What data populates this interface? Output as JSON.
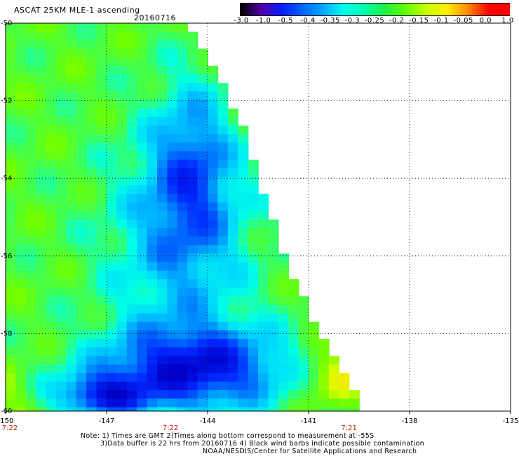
{
  "header": {
    "title": "ASCAT 25KM MLE-1 ascending",
    "date": "20160716"
  },
  "colorbar": {
    "labels": [
      "-3.0",
      "-1.0",
      "-0.5",
      "-0.4",
      "-0.35",
      "-0.3",
      "-0.25",
      "-0.2",
      "-0.15",
      "-0.1",
      "-0.05",
      "0.0",
      "1.0"
    ],
    "colors": [
      "#000000",
      "#5500aa",
      "#0022ff",
      "#0066ff",
      "#00aaff",
      "#00ffee",
      "#00ffaa",
      "#22ee44",
      "#66ff00",
      "#ccff00",
      "#ffee00",
      "#ff8800",
      "#ff0000"
    ]
  },
  "map": {
    "lon_range": [
      -150,
      -135
    ],
    "lat_range": [
      -60,
      -50
    ],
    "lon_ticks": [
      "-150",
      "-147",
      "-144",
      "-141",
      "-138",
      "-135"
    ],
    "lat_ticks": [
      "-50",
      "-52",
      "-54",
      "-56",
      "-58",
      "-60"
    ],
    "time_labels": [
      {
        "lon": -150,
        "text": "7:22"
      },
      {
        "lon": -145.1,
        "text": "7:22"
      },
      {
        "lon": -139.8,
        "text": "7:21"
      }
    ],
    "swath_edge": [
      [
        -144.7,
        -50.0
      ],
      [
        -143.0,
        -52.6
      ],
      [
        -142.6,
        -54.0
      ],
      [
        -141.8,
        -56.0
      ],
      [
        -141.0,
        -57.6
      ],
      [
        -139.6,
        -59.7
      ],
      [
        -139.6,
        -60.0
      ]
    ]
  },
  "notes": {
    "line1": "Note: 1) Times are GMT 2)Times along bottom correspond to measurement at -55S",
    "line2": "3)Data buffer is 22 hrs from 20160716 4) Black wind barbs indicate possible contamination",
    "line3": "NOAA/NESDIS/Center for Satellite Applications and Research"
  }
}
